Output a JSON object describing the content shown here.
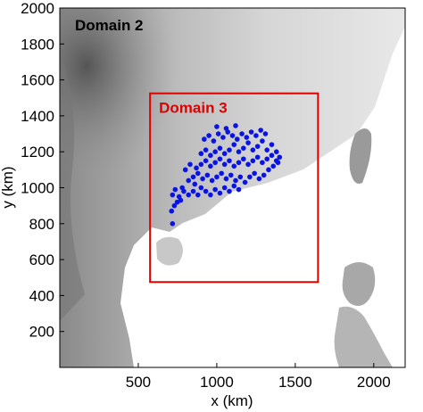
{
  "chart_data": {
    "type": "scatter",
    "xlabel": "x (km)",
    "ylabel": "y (km)",
    "xlim": [
      0,
      2200
    ],
    "ylim": [
      0,
      2000
    ],
    "x_ticks": [
      500,
      1000,
      1500,
      2000
    ],
    "y_ticks": [
      200,
      400,
      600,
      800,
      1000,
      1200,
      1400,
      1600,
      1800,
      2000
    ],
    "outer_domain_label": "Domain 2",
    "inner_domain": {
      "label": "Domain 3",
      "x_range": [
        575,
        1645
      ],
      "y_range": [
        475,
        1525
      ]
    },
    "background": "grayscale terrain elevation map",
    "point_color": "#0a14e0",
    "box_color": "#e00000",
    "points": [
      [
        718,
        800
      ],
      [
        712,
        870
      ],
      [
        730,
        900
      ],
      [
        748,
        920
      ],
      [
        770,
        930
      ],
      [
        718,
        960
      ],
      [
        760,
        950
      ],
      [
        790,
        980
      ],
      [
        735,
        990
      ],
      [
        780,
        1000
      ],
      [
        820,
        960
      ],
      [
        850,
        980
      ],
      [
        880,
        960
      ],
      [
        860,
        1020
      ],
      [
        900,
        1000
      ],
      [
        930,
        980
      ],
      [
        960,
        960
      ],
      [
        990,
        990
      ],
      [
        1020,
        970
      ],
      [
        1050,
        1000
      ],
      [
        1080,
        980
      ],
      [
        1110,
        1010
      ],
      [
        1140,
        990
      ],
      [
        820,
        1040
      ],
      [
        850,
        1060
      ],
      [
        880,
        1080
      ],
      [
        910,
        1050
      ],
      [
        940,
        1070
      ],
      [
        970,
        1040
      ],
      [
        1000,
        1060
      ],
      [
        1030,
        1080
      ],
      [
        1060,
        1050
      ],
      [
        1090,
        1070
      ],
      [
        1120,
        1040
      ],
      [
        1150,
        1060
      ],
      [
        1180,
        1030
      ],
      [
        1210,
        1060
      ],
      [
        1240,
        1080
      ],
      [
        1270,
        1050
      ],
      [
        1300,
        1070
      ],
      [
        1330,
        1100
      ],
      [
        1360,
        1120
      ],
      [
        1390,
        1140
      ],
      [
        870,
        1110
      ],
      [
        900,
        1130
      ],
      [
        930,
        1150
      ],
      [
        960,
        1120
      ],
      [
        990,
        1140
      ],
      [
        1020,
        1160
      ],
      [
        1050,
        1130
      ],
      [
        1080,
        1150
      ],
      [
        1110,
        1120
      ],
      [
        1140,
        1140
      ],
      [
        1170,
        1160
      ],
      [
        1200,
        1130
      ],
      [
        1230,
        1150
      ],
      [
        1260,
        1170
      ],
      [
        1290,
        1140
      ],
      [
        1320,
        1160
      ],
      [
        1350,
        1180
      ],
      [
        1380,
        1150
      ],
      [
        900,
        1190
      ],
      [
        930,
        1210
      ],
      [
        960,
        1180
      ],
      [
        990,
        1200
      ],
      [
        1020,
        1220
      ],
      [
        1050,
        1190
      ],
      [
        1080,
        1210
      ],
      [
        1110,
        1240
      ],
      [
        1140,
        1200
      ],
      [
        1170,
        1220
      ],
      [
        1200,
        1250
      ],
      [
        1230,
        1210
      ],
      [
        1260,
        1230
      ],
      [
        1290,
        1260
      ],
      [
        1320,
        1210
      ],
      [
        1350,
        1240
      ],
      [
        920,
        1270
      ],
      [
        950,
        1290
      ],
      [
        980,
        1260
      ],
      [
        1010,
        1300
      ],
      [
        1040,
        1280
      ],
      [
        1070,
        1310
      ],
      [
        1100,
        1290
      ],
      [
        1130,
        1270
      ],
      [
        1160,
        1300
      ],
      [
        1190,
        1280
      ],
      [
        1220,
        1310
      ],
      [
        1250,
        1290
      ],
      [
        1280,
        1320
      ],
      [
        1310,
        1300
      ],
      [
        1000,
        1340
      ],
      [
        1060,
        1330
      ],
      [
        1120,
        1345
      ],
      [
        800,
        1100
      ],
      [
        830,
        1130
      ],
      [
        1380,
        1200
      ],
      [
        1400,
        1170
      ]
    ]
  }
}
